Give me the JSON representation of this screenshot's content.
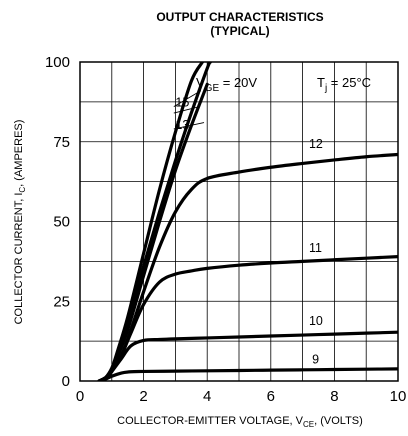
{
  "chart_data": {
    "type": "line",
    "title_line1": "OUTPUT CHARACTERISTICS",
    "title_line2": "(TYPICAL)",
    "xlabel": "COLLECTOR-EMITTER VOLTAGE, V",
    "xlabel_sub": "CE",
    "xlabel_tail": ", (VOLTS)",
    "ylabel": "COLLECTOR CURRENT, I",
    "ylabel_sub": "C",
    "ylabel_tail": ", (AMPERES)",
    "xlim": [
      0,
      10
    ],
    "ylim": [
      0,
      100
    ],
    "xticks": [
      "0",
      "2",
      "4",
      "6",
      "8",
      "10"
    ],
    "yticks": [
      "0",
      "25",
      "50",
      "75",
      "100"
    ],
    "grid": true,
    "vge_label": "V",
    "vge_sub": "GE",
    "vge_value": " = 20V",
    "tj_label": "T",
    "tj_sub": "j",
    "tj_value": " = 25°C",
    "series": [
      {
        "name": "20",
        "x": [
          0.6,
          0.8,
          1.0,
          1.2,
          1.5,
          2.0,
          2.5,
          3.0,
          3.5,
          3.85
        ],
        "y": [
          0,
          1,
          4,
          10,
          20,
          40,
          60,
          78,
          94,
          100
        ]
      },
      {
        "name": "15",
        "x": [
          0.6,
          0.8,
          1.0,
          1.2,
          1.5,
          2.0,
          2.5,
          3.0,
          3.5,
          4.0,
          4.1
        ],
        "y": [
          0,
          1,
          4,
          9,
          18,
          36,
          53,
          69,
          84,
          98,
          100
        ]
      },
      {
        "name": "13",
        "x": [
          0.6,
          0.8,
          1.0,
          1.2,
          1.5,
          2.0,
          2.5,
          3.0,
          3.5,
          4.0
        ],
        "y": [
          0,
          1,
          3,
          8,
          16,
          33,
          50,
          66,
          80,
          93
        ]
      },
      {
        "name": "12",
        "x": [
          0.6,
          0.8,
          1.0,
          1.3,
          1.6,
          2.0,
          2.5,
          3.0,
          3.5,
          4.0,
          5.0,
          6.0,
          7.0,
          8.0,
          9.0,
          10.0
        ],
        "y": [
          0,
          1,
          3,
          8,
          16,
          28,
          42,
          53,
          60,
          63.5,
          65.5,
          67,
          68.2,
          69.3,
          70.3,
          71
        ]
      },
      {
        "name": "11",
        "x": [
          0.6,
          0.8,
          1.0,
          1.3,
          1.6,
          2.0,
          2.5,
          3.0,
          3.5,
          4.0,
          5.0,
          6.0,
          7.0,
          8.0,
          9.0,
          10.0
        ],
        "y": [
          0,
          1,
          3,
          8,
          15,
          24,
          31,
          33.5,
          34.5,
          35.3,
          36.3,
          37,
          37.5,
          38,
          38.5,
          39
        ]
      },
      {
        "name": "10",
        "x": [
          0.6,
          0.8,
          1.0,
          1.3,
          1.6,
          2.0,
          2.5,
          3.0,
          4.0,
          5.0,
          6.0,
          7.0,
          8.0,
          9.0,
          10.0
        ],
        "y": [
          0,
          1,
          3,
          7,
          11,
          12.7,
          13,
          13.2,
          13.5,
          13.8,
          14.1,
          14.4,
          14.7,
          15.0,
          15.3
        ]
      },
      {
        "name": "9",
        "x": [
          0.6,
          0.8,
          1.0,
          1.3,
          1.6,
          2.0,
          3.0,
          4.0,
          5.0,
          6.0,
          7.0,
          8.0,
          9.0,
          10.0
        ],
        "y": [
          0,
          0.6,
          1.5,
          2.5,
          2.9,
          3.0,
          3.1,
          3.2,
          3.3,
          3.4,
          3.5,
          3.6,
          3.7,
          3.8
        ]
      }
    ],
    "curve_labels": [
      {
        "text": "15",
        "x": 3.0,
        "y": 86
      },
      {
        "text": "13",
        "x": 3.0,
        "y": 79
      },
      {
        "text": "12",
        "x": 7.2,
        "y": 73
      },
      {
        "text": "11",
        "x": 7.2,
        "y": 40.5
      },
      {
        "text": "10",
        "x": 7.2,
        "y": 17.5
      },
      {
        "text": "9",
        "x": 7.3,
        "y": 5.5
      }
    ],
    "leaders": [
      {
        "x1": 3.8,
        "y1": 91,
        "x2": 2.95,
        "y2": 86
      },
      {
        "x1": 3.75,
        "y1": 86,
        "x2": 2.95,
        "y2": 84
      },
      {
        "x1": 3.9,
        "y1": 81,
        "x2": 2.95,
        "y2": 79
      }
    ]
  }
}
